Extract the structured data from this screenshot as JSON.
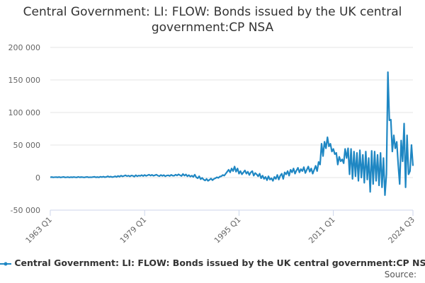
{
  "chart_data": {
    "type": "line",
    "title": "Central Government: LI: FLOW: Bonds issued by the UK central government:CP NSA",
    "source": "Source:",
    "categories": [
      "1963 Q1",
      null,
      null,
      null,
      null,
      null,
      null,
      null,
      null,
      null,
      null,
      null,
      null,
      null,
      null,
      null,
      null,
      null,
      null,
      null,
      null,
      null,
      null,
      null,
      null,
      null,
      null,
      null,
      null,
      null,
      null,
      null,
      null,
      null,
      null,
      null,
      null,
      null,
      null,
      null,
      null,
      null,
      null,
      null,
      null,
      null,
      null,
      null,
      null,
      null,
      null,
      null,
      null,
      null,
      null,
      null,
      null,
      null,
      null,
      null,
      null,
      null,
      null,
      null,
      "1979 Q1",
      null,
      null,
      null,
      null,
      null,
      null,
      null,
      null,
      null,
      null,
      null,
      null,
      null,
      null,
      null,
      null,
      null,
      null,
      null,
      null,
      null,
      null,
      null,
      null,
      null,
      null,
      null,
      null,
      null,
      null,
      null,
      null,
      null,
      null,
      null,
      null,
      null,
      null,
      null,
      null,
      null,
      null,
      null,
      null,
      null,
      null,
      null,
      null,
      null,
      null,
      null,
      null,
      null,
      null,
      null,
      null,
      null,
      null,
      null,
      null,
      null,
      null,
      null,
      "1995 Q1",
      null,
      null,
      null,
      null,
      null,
      null,
      null,
      null,
      null,
      null,
      null,
      null,
      null,
      null,
      null,
      null,
      null,
      null,
      null,
      null,
      null,
      null,
      null,
      null,
      null,
      null,
      null,
      null,
      null,
      null,
      null,
      null,
      null,
      null,
      null,
      null,
      null,
      null,
      null,
      null,
      null,
      null,
      null,
      null,
      null,
      null,
      null,
      null,
      null,
      null,
      null,
      null,
      null,
      null,
      null,
      null,
      null,
      null,
      null,
      null,
      null,
      null,
      null,
      "2011 Q1",
      null,
      null,
      null,
      null,
      null,
      null,
      null,
      null,
      null,
      null,
      null,
      null,
      null,
      null,
      null,
      null,
      null,
      null,
      null,
      null,
      null,
      null,
      null,
      null,
      null,
      null,
      null,
      null,
      null,
      null,
      null,
      null,
      null,
      null,
      null,
      null,
      null,
      null,
      null,
      null,
      null,
      null,
      null,
      null,
      null,
      null,
      null,
      null,
      null,
      null,
      null,
      null,
      null,
      "2024 Q3"
    ],
    "series": [
      {
        "name": "Central Government: LI: FLOW: Bonds issued by the UK central government:CP NSA",
        "color": "#1f87c3",
        "values": [
          500,
          800,
          300,
          600,
          700,
          400,
          900,
          200,
          600,
          1000,
          300,
          500,
          800,
          200,
          700,
          400,
          900,
          500,
          300,
          1100,
          400,
          800,
          600,
          200,
          700,
          1000,
          300,
          600,
          500,
          900,
          1200,
          400,
          800,
          300,
          1300,
          700,
          1500,
          600,
          1000,
          2000,
          900,
          1600,
          700,
          1200,
          2000,
          1000,
          2500,
          1400,
          3000,
          1800,
          2600,
          3500,
          2200,
          3000,
          1800,
          3200,
          2800,
          1500,
          3600,
          2000,
          3200,
          2500,
          3800,
          2400,
          4000,
          2600,
          3500,
          4500,
          3000,
          4200,
          2800,
          3600,
          4500,
          3000,
          2200,
          4000,
          2600,
          3800,
          2000,
          3200,
          3500,
          2400,
          4200,
          3000,
          2800,
          4500,
          3200,
          5000,
          3600,
          2500,
          5500,
          3000,
          4800,
          2000,
          3800,
          1500,
          3000,
          1000,
          4500,
          500,
          -1000,
          2000,
          -2500,
          -500,
          -3000,
          -4500,
          -2000,
          -5000,
          -3500,
          -1500,
          -4000,
          -2000,
          -1000,
          500,
          -500,
          1500,
          2000,
          4000,
          3000,
          6000,
          9000,
          12000,
          8000,
          14000,
          10000,
          17000,
          9000,
          14000,
          6000,
          10000,
          5000,
          8000,
          11000,
          6000,
          9000,
          4000,
          8000,
          10000,
          3000,
          7000,
          5000,
          2000,
          6000,
          -1000,
          3000,
          -2000,
          1000,
          -4000,
          2000,
          -3000,
          -1000,
          -5000,
          1000,
          -2000,
          4000,
          -3000,
          3000,
          6000,
          -2000,
          8000,
          5000,
          10000,
          3000,
          12000,
          8000,
          14000,
          6000,
          11000,
          15000,
          8000,
          13000,
          10000,
          16000,
          7000,
          12000,
          17000,
          9000,
          14000,
          6000,
          12000,
          18000,
          10000,
          24000,
          20000,
          52000,
          33000,
          55000,
          45000,
          62000,
          48000,
          52000,
          40000,
          44000,
          36000,
          38000,
          20000,
          32000,
          25000,
          28000,
          22000,
          44000,
          30000,
          45000,
          5000,
          44000,
          -2000,
          40000,
          2000,
          38000,
          -5000,
          42000,
          0,
          35000,
          -8000,
          40000,
          -3000,
          30000,
          -22000,
          41000,
          -10000,
          40000,
          -5000,
          35000,
          -12000,
          38000,
          -15000,
          30000,
          -27000,
          5000,
          162000,
          88000,
          89000,
          40000,
          65000,
          45000,
          55000,
          20000,
          -10000,
          57000,
          25000,
          83000,
          -15000,
          65000,
          5000,
          10000,
          50000,
          18000
        ]
      }
    ],
    "ylim": [
      -50000,
      200000
    ],
    "yticks": [
      {
        "value": -50000,
        "label": "-50 000"
      },
      0,
      {
        "value": 50000,
        "label": "50 000"
      },
      {
        "value": 100000,
        "label": "100 000"
      },
      {
        "value": 150000,
        "label": "150 000"
      },
      {
        "value": 200000,
        "label": "200 000"
      }
    ],
    "grid": true
  }
}
